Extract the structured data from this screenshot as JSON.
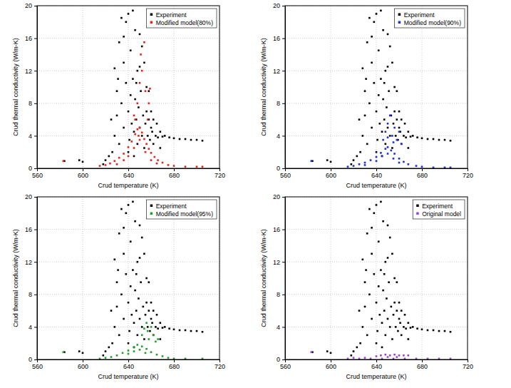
{
  "chart_data": [
    {
      "type": "scatter",
      "xlabel": "Crud temperature (K)",
      "ylabel": "Crud thermal conductivity (W/m-K)",
      "xlim": [
        560,
        720
      ],
      "ylim": [
        0,
        20
      ],
      "xticks": [
        560,
        600,
        640,
        680,
        720
      ],
      "yticks": [
        0,
        4,
        8,
        12,
        16,
        20
      ],
      "grid": true,
      "legend": "upper right",
      "series": [
        {
          "name": "Experiment",
          "color": "#000000",
          "marker": "square",
          "x": [
            584,
            597,
            600,
            620,
            625,
            628,
            630,
            632,
            634,
            636,
            638,
            640,
            642,
            644,
            646,
            648,
            650,
            652,
            654,
            656,
            658,
            660,
            662,
            665,
            668,
            672,
            676,
            680,
            685,
            690,
            695,
            700,
            705,
            626,
            628,
            630,
            632,
            634,
            636,
            638,
            640,
            641,
            642,
            643,
            644,
            645,
            646,
            647,
            648,
            649,
            650,
            651,
            652,
            653,
            654,
            655,
            656,
            657,
            658,
            659,
            660,
            661,
            662,
            664,
            666,
            668,
            670,
            623,
            618,
            640,
            645,
            650,
            636,
            631,
            647
          ],
          "values": [
            0.9,
            1.0,
            0.8,
            1.0,
            6.0,
            12.3,
            9.5,
            15.5,
            18.5,
            16.2,
            18.0,
            19.0,
            14.5,
            19.4,
            17.0,
            12.0,
            16.5,
            15.0,
            13.0,
            10.0,
            9.5,
            7.0,
            6.0,
            5.5,
            4.5,
            4.0,
            3.8,
            3.7,
            3.6,
            3.6,
            3.5,
            3.5,
            3.4,
            2.0,
            4.0,
            6.5,
            3.0,
            8.0,
            5.0,
            10.5,
            7.0,
            3.5,
            9.0,
            5.5,
            11.0,
            4.5,
            8.5,
            6.0,
            3.0,
            7.5,
            5.0,
            9.5,
            4.0,
            6.5,
            2.5,
            5.5,
            7.0,
            4.0,
            6.0,
            3.5,
            5.0,
            4.5,
            3.0,
            4.0,
            3.8,
            2.5,
            3.9,
            1.5,
            0.5,
            2.0,
            1.5,
            12.5,
            13.0,
            11.0,
            10.5
          ]
        },
        {
          "name": "Modified model(80%)",
          "color": "#e3241b",
          "marker": "square",
          "x": [
            583,
            615,
            620,
            624,
            628,
            632,
            636,
            640,
            643,
            646,
            648,
            650,
            652,
            654,
            656,
            658,
            660,
            663,
            666,
            670,
            675,
            680,
            690,
            700,
            705,
            630,
            636,
            640,
            645,
            650,
            655,
            660,
            665,
            645,
            648,
            650,
            652,
            654,
            655,
            657,
            658,
            659,
            651,
            649,
            646
          ],
          "values": [
            0.9,
            0.3,
            0.4,
            0.6,
            0.9,
            1.3,
            1.8,
            2.6,
            3.3,
            4.2,
            4.8,
            5.0,
            4.4,
            3.6,
            3.0,
            2.4,
            1.9,
            1.4,
            1.0,
            0.7,
            0.4,
            0.3,
            0.2,
            0.2,
            0.2,
            0.5,
            1.0,
            1.5,
            2.5,
            3.5,
            2.0,
            1.0,
            0.6,
            6.5,
            8.0,
            10.5,
            12.0,
            15.5,
            9.5,
            6.0,
            8.0,
            9.8,
            14.0,
            4.0,
            6.0
          ]
        }
      ]
    },
    {
      "type": "scatter",
      "xlabel": "Crud temperature (K)",
      "ylabel": "Crud thermal conductivity (W/m-K)",
      "xlim": [
        560,
        720
      ],
      "ylim": [
        0,
        20
      ],
      "xticks": [
        560,
        600,
        640,
        680,
        720
      ],
      "yticks": [
        0,
        4,
        8,
        12,
        16,
        20
      ],
      "grid": true,
      "legend": "upper right",
      "series": [
        {
          "name": "Experiment",
          "color": "#000000",
          "marker": "square",
          "x": [
            584,
            597,
            600,
            620,
            625,
            628,
            630,
            632,
            634,
            636,
            638,
            640,
            642,
            644,
            646,
            648,
            650,
            652,
            654,
            656,
            658,
            660,
            662,
            665,
            668,
            672,
            676,
            680,
            685,
            690,
            695,
            700,
            705,
            626,
            628,
            630,
            632,
            634,
            636,
            638,
            640,
            641,
            642,
            643,
            644,
            645,
            646,
            647,
            648,
            649,
            650,
            651,
            652,
            653,
            654,
            655,
            656,
            657,
            658,
            659,
            660,
            661,
            662,
            664,
            666,
            668,
            670,
            623,
            618,
            640,
            645,
            650,
            636,
            631,
            647
          ],
          "values": [
            0.9,
            1.0,
            0.8,
            1.0,
            6.0,
            12.3,
            9.5,
            15.5,
            18.5,
            16.2,
            18.0,
            19.0,
            14.5,
            19.4,
            17.0,
            12.0,
            16.5,
            15.0,
            13.0,
            10.0,
            9.5,
            7.0,
            6.0,
            5.5,
            4.5,
            4.0,
            3.8,
            3.7,
            3.6,
            3.6,
            3.5,
            3.5,
            3.4,
            2.0,
            4.0,
            6.5,
            3.0,
            8.0,
            5.0,
            10.5,
            7.0,
            3.5,
            9.0,
            5.5,
            11.0,
            4.5,
            8.5,
            6.0,
            3.0,
            7.5,
            5.0,
            9.5,
            4.0,
            6.5,
            2.5,
            5.5,
            7.0,
            4.0,
            6.0,
            3.5,
            5.0,
            4.5,
            3.0,
            4.0,
            3.8,
            2.5,
            3.9,
            1.5,
            0.5,
            2.0,
            1.5,
            12.5,
            13.0,
            11.0,
            10.5
          ]
        },
        {
          "name": "Modified model(90%)",
          "color": "#1a2ee0",
          "marker": "square",
          "x": [
            583,
            615,
            620,
            625,
            630,
            635,
            640,
            644,
            648,
            650,
            653,
            656,
            660,
            664,
            668,
            675,
            680,
            690,
            700,
            705,
            630,
            640,
            645,
            650,
            655,
            660,
            646,
            648,
            650,
            652,
            654,
            656,
            658,
            660,
            662,
            655,
            650
          ],
          "values": [
            0.9,
            0.2,
            0.3,
            0.5,
            0.7,
            1.0,
            1.4,
            1.9,
            2.4,
            2.6,
            2.2,
            1.8,
            1.2,
            0.8,
            0.5,
            0.3,
            0.2,
            0.1,
            0.1,
            0.1,
            0.4,
            0.9,
            1.5,
            1.8,
            1.2,
            0.7,
            3.5,
            4.5,
            5.5,
            6.5,
            4.0,
            5.0,
            3.5,
            4.5,
            3.0,
            3.2,
            3.8
          ]
        }
      ]
    },
    {
      "type": "scatter",
      "xlabel": "Crud temperature (K)",
      "ylabel": "Crud thermal conductivity (W/m-K)",
      "xlim": [
        560,
        720
      ],
      "ylim": [
        0,
        20
      ],
      "xticks": [
        560,
        600,
        640,
        680,
        720
      ],
      "yticks": [
        0,
        4,
        8,
        12,
        16,
        20
      ],
      "grid": true,
      "legend": "upper right",
      "series": [
        {
          "name": "Experiment",
          "color": "#000000",
          "marker": "square",
          "x": [
            584,
            597,
            600,
            620,
            625,
            628,
            630,
            632,
            634,
            636,
            638,
            640,
            642,
            644,
            646,
            648,
            650,
            652,
            654,
            656,
            658,
            660,
            662,
            665,
            668,
            672,
            676,
            680,
            685,
            690,
            695,
            700,
            705,
            626,
            628,
            630,
            632,
            634,
            636,
            638,
            640,
            641,
            642,
            643,
            644,
            645,
            646,
            647,
            648,
            649,
            650,
            651,
            652,
            653,
            654,
            655,
            656,
            657,
            658,
            659,
            660,
            661,
            662,
            664,
            666,
            668,
            670,
            623,
            618,
            640,
            645,
            650,
            636,
            631,
            647
          ],
          "values": [
            0.9,
            1.0,
            0.8,
            1.0,
            6.0,
            12.3,
            9.5,
            15.5,
            18.5,
            16.2,
            18.0,
            19.0,
            14.5,
            19.4,
            17.0,
            12.0,
            16.5,
            15.0,
            13.0,
            10.0,
            9.5,
            7.0,
            6.0,
            5.5,
            4.5,
            4.0,
            3.8,
            3.7,
            3.6,
            3.6,
            3.5,
            3.5,
            3.4,
            2.0,
            4.0,
            6.5,
            3.0,
            8.0,
            5.0,
            10.5,
            7.0,
            3.5,
            9.0,
            5.5,
            11.0,
            4.5,
            8.5,
            6.0,
            3.0,
            7.5,
            5.0,
            9.5,
            4.0,
            6.5,
            2.5,
            5.5,
            7.0,
            4.0,
            6.0,
            3.5,
            5.0,
            4.5,
            3.0,
            4.0,
            3.8,
            2.5,
            3.9,
            1.5,
            0.5,
            2.0,
            1.5,
            12.5,
            13.0,
            11.0,
            10.5
          ]
        },
        {
          "name": "Modified model(95%)",
          "color": "#1f9e2b",
          "marker": "square",
          "x": [
            583,
            615,
            620,
            625,
            630,
            635,
            640,
            645,
            648,
            652,
            656,
            660,
            665,
            670,
            675,
            680,
            690,
            705,
            640,
            645,
            650,
            655,
            652,
            654,
            656,
            657,
            658,
            660,
            662,
            664,
            666
          ],
          "values": [
            0.9,
            0.1,
            0.2,
            0.3,
            0.5,
            0.8,
            1.1,
            1.5,
            1.8,
            1.6,
            1.3,
            0.9,
            0.6,
            0.4,
            0.2,
            0.1,
            0.1,
            0.1,
            0.7,
            1.0,
            1.2,
            0.8,
            3.0,
            3.8,
            4.5,
            3.5,
            2.5,
            4.0,
            3.0,
            2.2,
            2.5
          ]
        }
      ]
    },
    {
      "type": "scatter",
      "xlabel": "Crud temperature (K)",
      "ylabel": "Crud thermal conductivity (W/m-K)",
      "xlim": [
        560,
        720
      ],
      "ylim": [
        0,
        20
      ],
      "xticks": [
        560,
        600,
        640,
        680,
        720
      ],
      "yticks": [
        0,
        4,
        8,
        12,
        16,
        20
      ],
      "grid": true,
      "legend": "upper right",
      "series": [
        {
          "name": "Experiment",
          "color": "#000000",
          "marker": "square",
          "x": [
            584,
            597,
            600,
            620,
            625,
            628,
            630,
            632,
            634,
            636,
            638,
            640,
            642,
            644,
            646,
            648,
            650,
            652,
            654,
            656,
            658,
            660,
            662,
            665,
            668,
            672,
            676,
            680,
            685,
            690,
            695,
            700,
            705,
            626,
            628,
            630,
            632,
            634,
            636,
            638,
            640,
            641,
            642,
            643,
            644,
            645,
            646,
            647,
            648,
            649,
            650,
            651,
            652,
            653,
            654,
            655,
            656,
            657,
            658,
            659,
            660,
            661,
            662,
            664,
            666,
            668,
            670,
            623,
            618,
            640,
            645,
            650,
            636,
            631,
            647
          ],
          "values": [
            0.9,
            1.0,
            0.8,
            1.0,
            6.0,
            12.3,
            9.5,
            15.5,
            18.5,
            16.2,
            18.0,
            19.0,
            14.5,
            19.4,
            17.0,
            12.0,
            16.5,
            15.0,
            13.0,
            10.0,
            9.5,
            7.0,
            6.0,
            5.5,
            4.5,
            4.0,
            3.8,
            3.7,
            3.6,
            3.6,
            3.5,
            3.5,
            3.4,
            2.0,
            4.0,
            6.5,
            3.0,
            8.0,
            5.0,
            10.5,
            7.0,
            3.5,
            9.0,
            5.5,
            11.0,
            4.5,
            8.5,
            6.0,
            3.0,
            7.5,
            5.0,
            9.5,
            4.0,
            6.5,
            2.5,
            5.5,
            7.0,
            4.0,
            6.0,
            3.5,
            5.0,
            4.5,
            3.0,
            4.0,
            3.8,
            2.5,
            3.9,
            1.5,
            0.5,
            2.0,
            1.5,
            12.5,
            13.0,
            11.0,
            10.5
          ]
        },
        {
          "name": "Original model",
          "color": "#a040d0",
          "marker": "square",
          "x": [
            583,
            615,
            625,
            635,
            645,
            655,
            665,
            675,
            685,
            695,
            705,
            620,
            630,
            640,
            644,
            648,
            652,
            656,
            660,
            664,
            668,
            650,
            658
          ],
          "values": [
            0.9,
            0.1,
            0.1,
            0.1,
            0.1,
            0.1,
            0.1,
            0.1,
            0.1,
            0.1,
            0.1,
            0.2,
            0.2,
            0.4,
            0.5,
            0.6,
            0.5,
            0.6,
            0.5,
            0.5,
            0.5,
            0.3,
            0.3
          ]
        }
      ]
    }
  ]
}
